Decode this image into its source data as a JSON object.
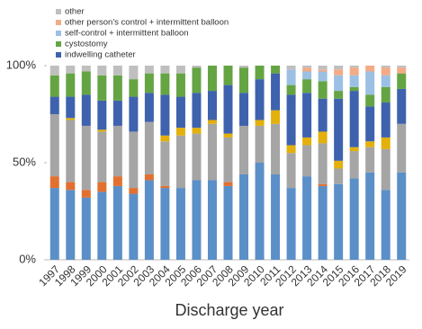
{
  "chart_data": {
    "type": "stacked_bar",
    "categories": [
      "1997",
      "1998",
      "1999",
      "2000",
      "2001",
      "2002",
      "2003",
      "2004",
      "2005",
      "2006",
      "2007",
      "2008",
      "2009",
      "2010",
      "2011",
      "2012",
      "2013",
      "2014",
      "2015",
      "2016",
      "2017",
      "2018",
      "2019"
    ],
    "series": [
      {
        "color": "#5b8fc7",
        "values": [
          37,
          36,
          32,
          35,
          38,
          34,
          41,
          37,
          37,
          41,
          41,
          38,
          44,
          50,
          44,
          37,
          43,
          38,
          39,
          42,
          45,
          36,
          45
        ]
      },
      {
        "color": "#e2702f",
        "values": [
          6,
          4,
          4,
          5,
          5,
          3,
          3,
          1,
          0,
          0,
          0,
          2,
          0,
          0,
          0,
          0,
          0,
          1,
          0,
          0,
          0,
          0,
          0
        ]
      },
      {
        "color": "#a5a5a5",
        "values": [
          32,
          32,
          33,
          26,
          26,
          29,
          27,
          23,
          27,
          24,
          29,
          23,
          25,
          19,
          26,
          18,
          16,
          21,
          8,
          14,
          13,
          21,
          25
        ]
      },
      {
        "color": "#e3b00c",
        "values": [
          0,
          1,
          0,
          1,
          0,
          0,
          0,
          3,
          4,
          3,
          2,
          2,
          0,
          3,
          7,
          4,
          4,
          6,
          4,
          2,
          3,
          6,
          0
        ]
      },
      {
        "name": "indwelling catheter",
        "color": "#3e62ad",
        "values": [
          9,
          11,
          16,
          15,
          13,
          18,
          15,
          21,
          16,
          18,
          15,
          25,
          17,
          21,
          19,
          26,
          23,
          17,
          32,
          29,
          18,
          18,
          18
        ]
      },
      {
        "name": "cystostomy",
        "color": "#65a443",
        "values": [
          11,
          12,
          12,
          13,
          13,
          9,
          10,
          11,
          12,
          13,
          13,
          10,
          13,
          7,
          4,
          5,
          7,
          9,
          4,
          2,
          6,
          8,
          8
        ]
      },
      {
        "name": "self-control + intermittent balloon",
        "color": "#9cc0e4",
        "values": [
          0,
          0,
          0,
          0,
          0,
          0,
          0,
          0,
          0,
          0,
          0,
          0,
          0,
          0,
          0,
          8,
          4,
          5,
          8,
          6,
          12,
          6,
          0
        ]
      },
      {
        "name": "other person's control + intermittent balloon",
        "color": "#f3ab86",
        "values": [
          0,
          0,
          0,
          0,
          0,
          0,
          0,
          0,
          0,
          0,
          0,
          0,
          0,
          0,
          0,
          0,
          2,
          1,
          3,
          4,
          3,
          4,
          3
        ]
      },
      {
        "name": "other",
        "color": "#bfbfbf",
        "values": [
          5,
          4,
          3,
          5,
          5,
          7,
          4,
          4,
          4,
          1,
          0,
          0,
          1,
          0,
          0,
          2,
          1,
          2,
          2,
          1,
          0,
          1,
          1
        ]
      }
    ],
    "x_label": "Discharge year",
    "ylim": [
      0,
      100
    ],
    "yticks": [
      {
        "value": 0,
        "label": "0%"
      },
      {
        "value": 50,
        "label": "50%"
      },
      {
        "value": 100,
        "label": "100%"
      }
    ],
    "grid": false,
    "legend": "top-left"
  }
}
